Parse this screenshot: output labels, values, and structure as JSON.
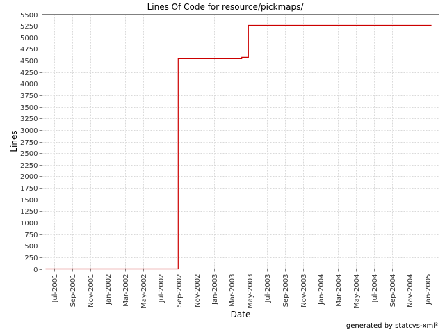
{
  "chart_data": {
    "type": "line",
    "title": "Lines Of Code for resource/pickmaps/",
    "xlabel": "Date",
    "ylabel": "Lines",
    "ylim": [
      0,
      5500
    ],
    "ytick_step": 250,
    "x_range": [
      "2001-05-20",
      "2005-02-10"
    ],
    "x_tick_labels": [
      "Jul-2001",
      "Sep-2001",
      "Nov-2001",
      "Jan-2002",
      "Mar-2002",
      "May-2002",
      "Jul-2002",
      "Sep-2002",
      "Nov-2002",
      "Jan-2003",
      "Mar-2003",
      "May-2003",
      "Jul-2003",
      "Sep-2003",
      "Nov-2003",
      "Jan-2004",
      "Mar-2004",
      "May-2004",
      "Jul-2004",
      "Sep-2004",
      "Nov-2004",
      "Jan-2005"
    ],
    "x_tick_dates": [
      "2001-07-01",
      "2001-09-01",
      "2001-11-01",
      "2002-01-01",
      "2002-03-01",
      "2002-05-01",
      "2002-07-01",
      "2002-09-01",
      "2002-11-01",
      "2003-01-01",
      "2003-03-01",
      "2003-05-01",
      "2003-07-01",
      "2003-09-01",
      "2003-11-01",
      "2004-01-01",
      "2004-03-01",
      "2004-05-01",
      "2004-07-01",
      "2004-09-01",
      "2004-11-01",
      "2005-01-01"
    ],
    "grid": true,
    "series": [
      {
        "step": true,
        "color": "#cc0000",
        "points": [
          {
            "x": "2001-06-01",
            "y": 0
          },
          {
            "x": "2002-08-30",
            "y": 0
          },
          {
            "x": "2002-08-30",
            "y": 4540
          },
          {
            "x": "2003-04-05",
            "y": 4540
          },
          {
            "x": "2003-04-05",
            "y": 4570
          },
          {
            "x": "2003-04-28",
            "y": 4570
          },
          {
            "x": "2003-04-28",
            "y": 5260
          },
          {
            "x": "2005-01-15",
            "y": 5260
          }
        ]
      }
    ]
  },
  "footer": "generated by statcvs-xml²"
}
